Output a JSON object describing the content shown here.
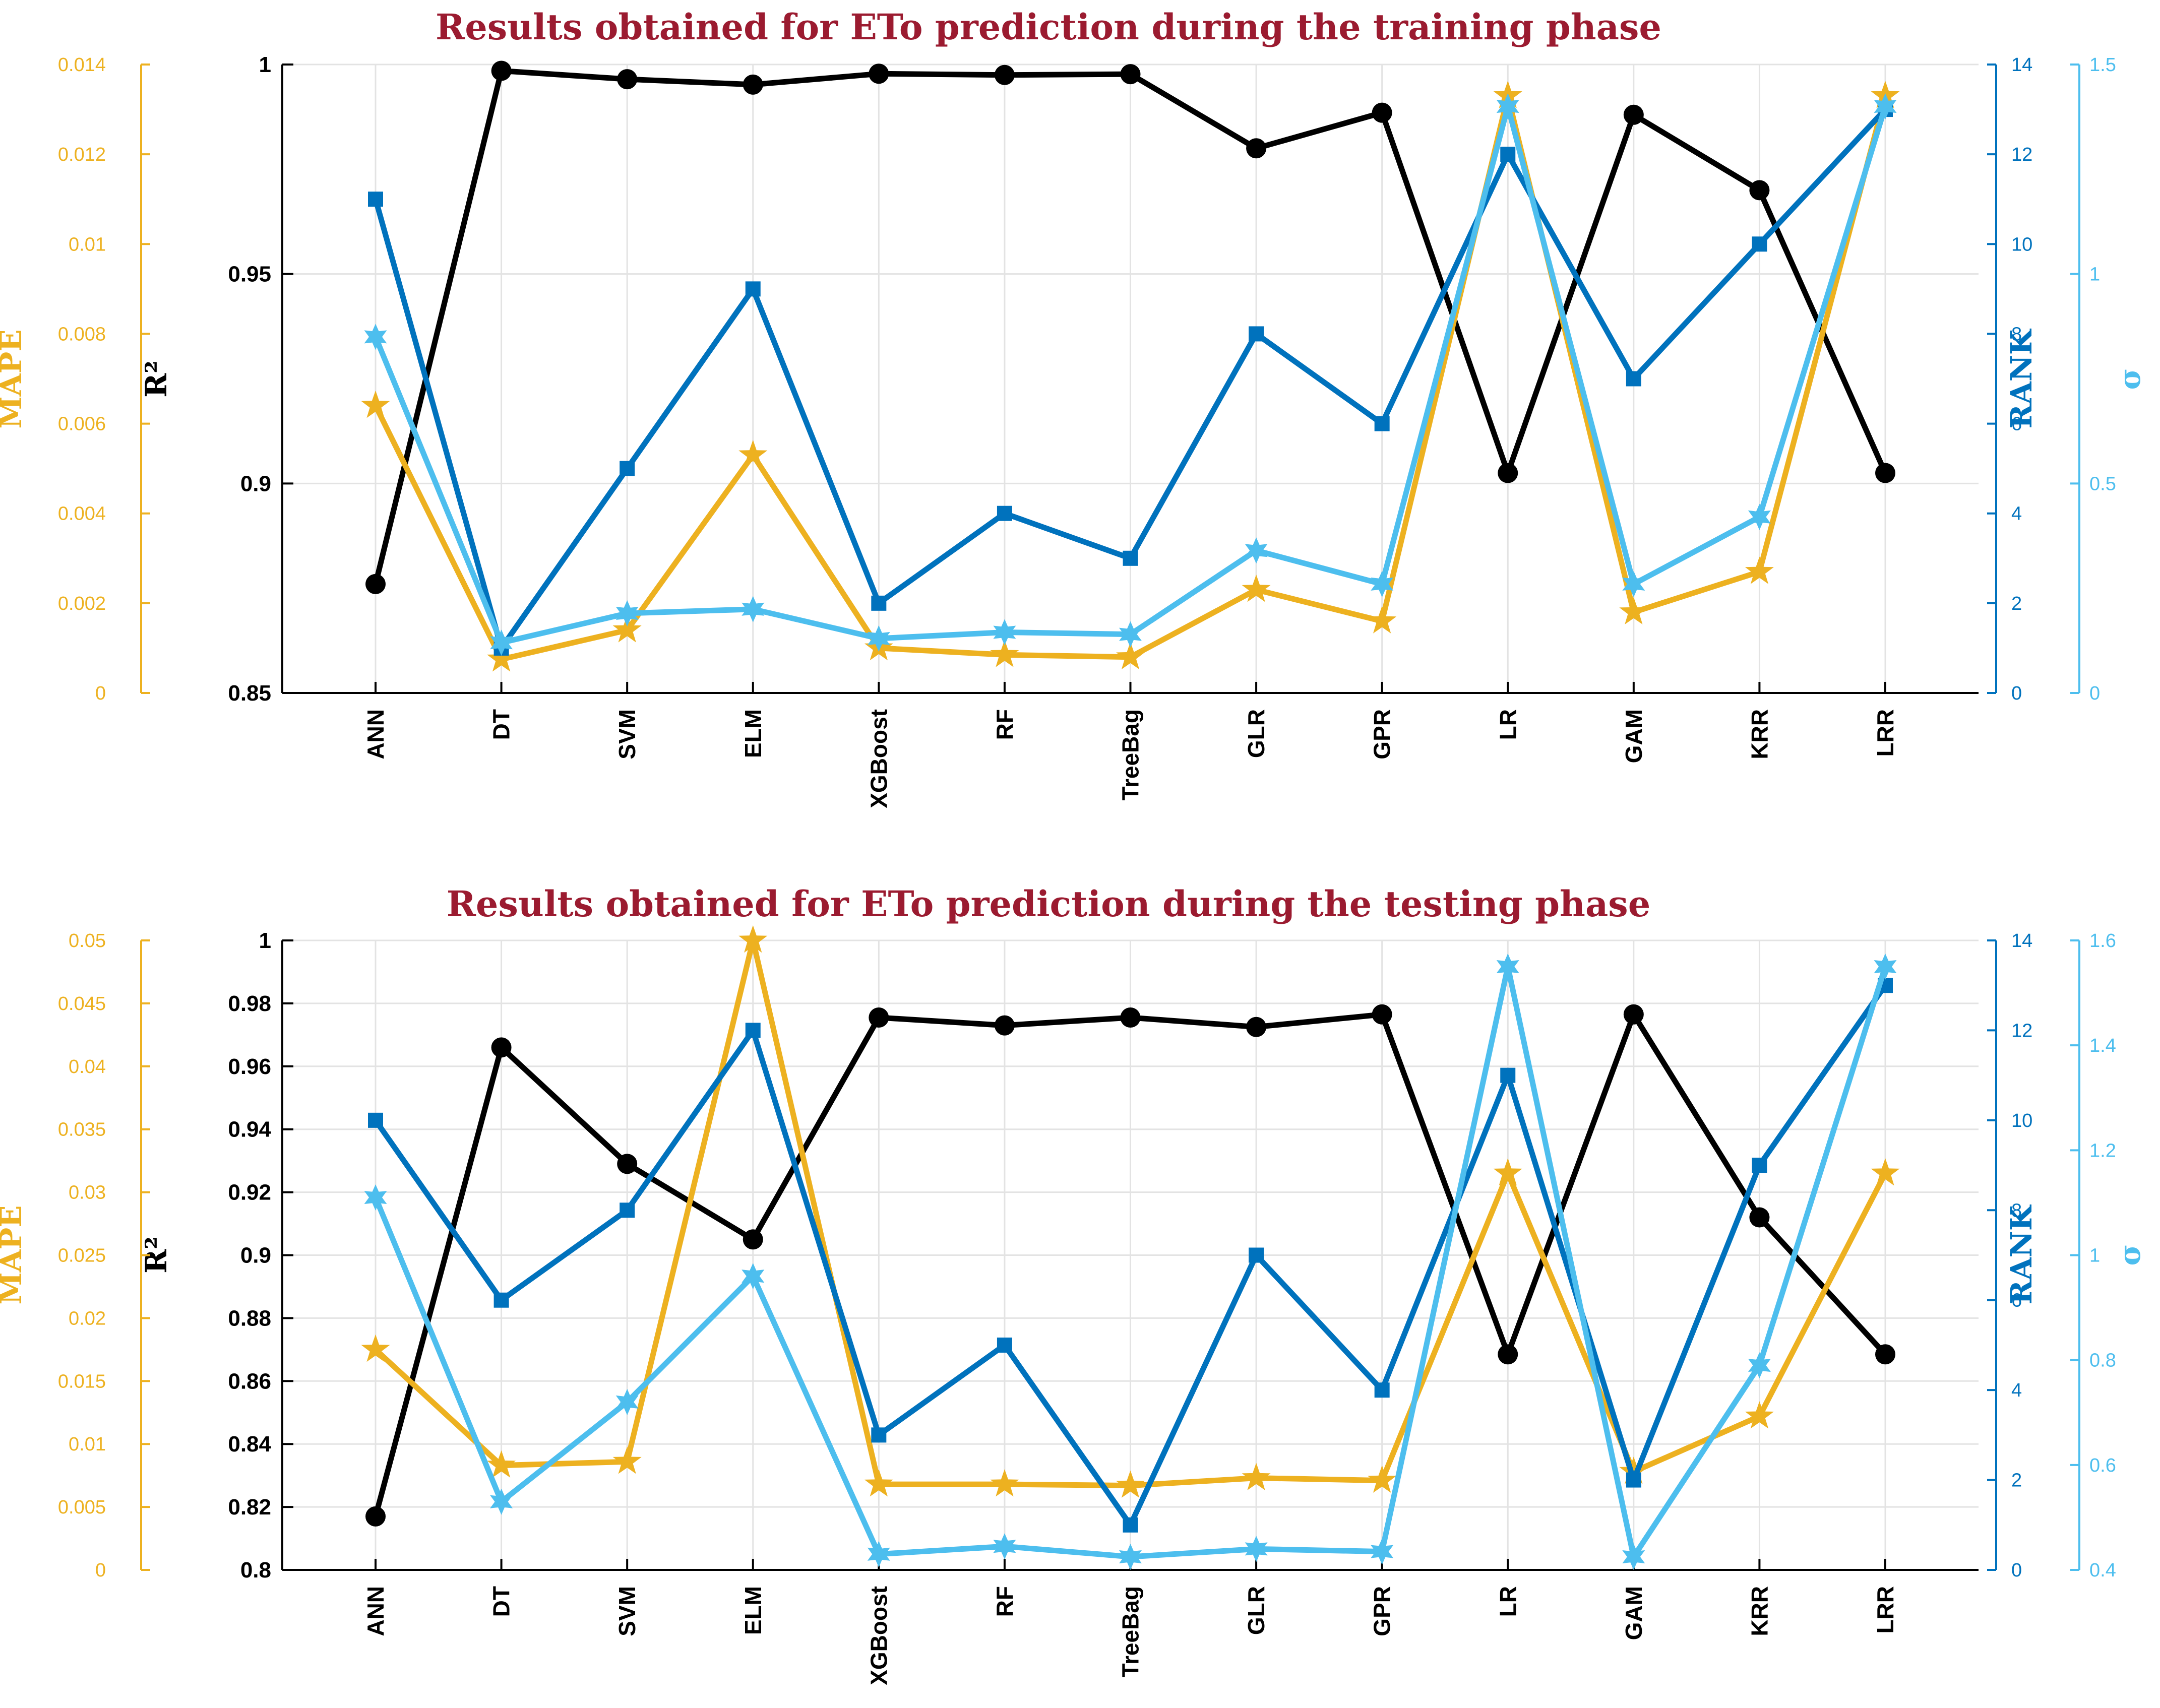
{
  "colors": {
    "r2": "#000000",
    "mape": "#EDB120",
    "rank": "#0072BD",
    "sigma": "#4DBEEE",
    "title": "#9b1b30"
  },
  "chart_data": [
    {
      "type": "line",
      "title": "Results obtained for ETo prediction during the training phase",
      "categories": [
        "ANN",
        "DT",
        "SVM",
        "ELM",
        "XGBoost",
        "RF",
        "TreeBag",
        "GLR",
        "GPR",
        "LR",
        "GAM",
        "KRR",
        "LRR"
      ],
      "axes": {
        "r2": {
          "label": "R²",
          "ylim": [
            0.85,
            1
          ],
          "ticks": [
            0.85,
            0.9,
            0.95,
            1
          ],
          "tick_labels": [
            "0.85",
            "0.9",
            "0.95",
            "1"
          ]
        },
        "mape": {
          "label": "MAPE",
          "ylim": [
            0,
            0.014
          ],
          "ticks": [
            0,
            0.002,
            0.004,
            0.006,
            0.008,
            0.01,
            0.012,
            0.014
          ],
          "tick_labels": [
            "0",
            "0.002",
            "0.004",
            "0.006",
            "0.008",
            "0.01",
            "0.012",
            "0.014"
          ]
        },
        "rank": {
          "label": "RANK",
          "ylim": [
            0,
            14
          ],
          "ticks": [
            0,
            2,
            4,
            6,
            8,
            10,
            12,
            14
          ],
          "tick_labels": [
            "0",
            "2",
            "4",
            "6",
            "8",
            "10",
            "12",
            "14"
          ]
        },
        "sigma": {
          "label": "σ",
          "ylim": [
            0,
            1.5
          ],
          "ticks": [
            0,
            0.5,
            1,
            1.5
          ],
          "tick_labels": [
            "0",
            "0.5",
            "1",
            "1.5"
          ]
        }
      },
      "series": [
        {
          "name": "R²",
          "axis": "r2",
          "marker": "circle",
          "values": [
            0.876,
            0.9985,
            0.9965,
            0.9952,
            0.9978,
            0.9975,
            0.9977,
            0.98,
            0.9885,
            0.9025,
            0.988,
            0.97,
            0.9025
          ]
        },
        {
          "name": "MAPE",
          "axis": "mape",
          "marker": "star",
          "values": [
            0.0064,
            0.00075,
            0.0014,
            0.0053,
            0.001,
            0.00085,
            0.0008,
            0.0023,
            0.0016,
            0.0133,
            0.0018,
            0.0027,
            0.0133
          ]
        },
        {
          "name": "RANK",
          "axis": "rank",
          "marker": "square",
          "values": [
            11,
            1,
            5,
            9,
            2,
            4,
            3,
            8,
            6,
            12,
            7,
            10,
            13
          ]
        },
        {
          "name": "σ",
          "axis": "sigma",
          "marker": "hexagram",
          "values": [
            0.85,
            0.12,
            0.19,
            0.2,
            0.13,
            0.145,
            0.14,
            0.34,
            0.26,
            1.4,
            0.26,
            0.42,
            1.4
          ]
        }
      ]
    },
    {
      "type": "line",
      "title": "Results obtained for ETo prediction during the testing phase",
      "categories": [
        "ANN",
        "DT",
        "SVM",
        "ELM",
        "XGBoost",
        "RF",
        "TreeBag",
        "GLR",
        "GPR",
        "LR",
        "GAM",
        "KRR",
        "LRR"
      ],
      "axes": {
        "r2": {
          "label": "R²",
          "ylim": [
            0.8,
            1
          ],
          "ticks": [
            0.8,
            0.82,
            0.84,
            0.86,
            0.88,
            0.9,
            0.92,
            0.94,
            0.96,
            0.98,
            1
          ],
          "tick_labels": [
            "0.8",
            "0.82",
            "0.84",
            "0.86",
            "0.88",
            "0.9",
            "0.92",
            "0.94",
            "0.96",
            "0.98",
            "1"
          ]
        },
        "mape": {
          "label": "MAPE",
          "ylim": [
            0,
            0.05
          ],
          "ticks": [
            0,
            0.005,
            0.01,
            0.015,
            0.02,
            0.025,
            0.03,
            0.035,
            0.04,
            0.045,
            0.05
          ],
          "tick_labels": [
            "0",
            "0.005",
            "0.01",
            "0.015",
            "0.02",
            "0.025",
            "0.03",
            "0.035",
            "0.04",
            "0.045",
            "0.05"
          ]
        },
        "rank": {
          "label": "RANK",
          "ylim": [
            0,
            14
          ],
          "ticks": [
            0,
            2,
            4,
            6,
            8,
            10,
            12,
            14
          ],
          "tick_labels": [
            "0",
            "2",
            "4",
            "6",
            "8",
            "10",
            "12",
            "14"
          ]
        },
        "sigma": {
          "label": "σ",
          "ylim": [
            0.4,
            1.6
          ],
          "ticks": [
            0.4,
            0.6,
            0.8,
            1,
            1.2,
            1.4,
            1.6
          ],
          "tick_labels": [
            "0.4",
            "0.6",
            "0.8",
            "1",
            "1.2",
            "1.4",
            "1.6"
          ]
        }
      },
      "series": [
        {
          "name": "R²",
          "axis": "r2",
          "marker": "circle",
          "values": [
            0.817,
            0.966,
            0.929,
            0.905,
            0.9755,
            0.973,
            0.9755,
            0.9725,
            0.9765,
            0.8685,
            0.9765,
            0.912,
            0.8685
          ]
        },
        {
          "name": "MAPE",
          "axis": "mape",
          "marker": "star",
          "values": [
            0.0175,
            0.0083,
            0.0086,
            0.05,
            0.0068,
            0.0068,
            0.0067,
            0.0073,
            0.0071,
            0.0315,
            0.0078,
            0.0122,
            0.0315
          ]
        },
        {
          "name": "RANK",
          "axis": "rank",
          "marker": "square",
          "values": [
            10,
            6,
            8,
            12,
            3,
            5,
            1,
            7,
            4,
            11,
            2,
            9,
            13
          ]
        },
        {
          "name": "σ",
          "axis": "sigma",
          "marker": "hexagram",
          "values": [
            1.11,
            0.53,
            0.72,
            0.96,
            0.43,
            0.445,
            0.425,
            0.44,
            0.435,
            1.55,
            0.425,
            0.79,
            1.55
          ]
        }
      ]
    }
  ]
}
